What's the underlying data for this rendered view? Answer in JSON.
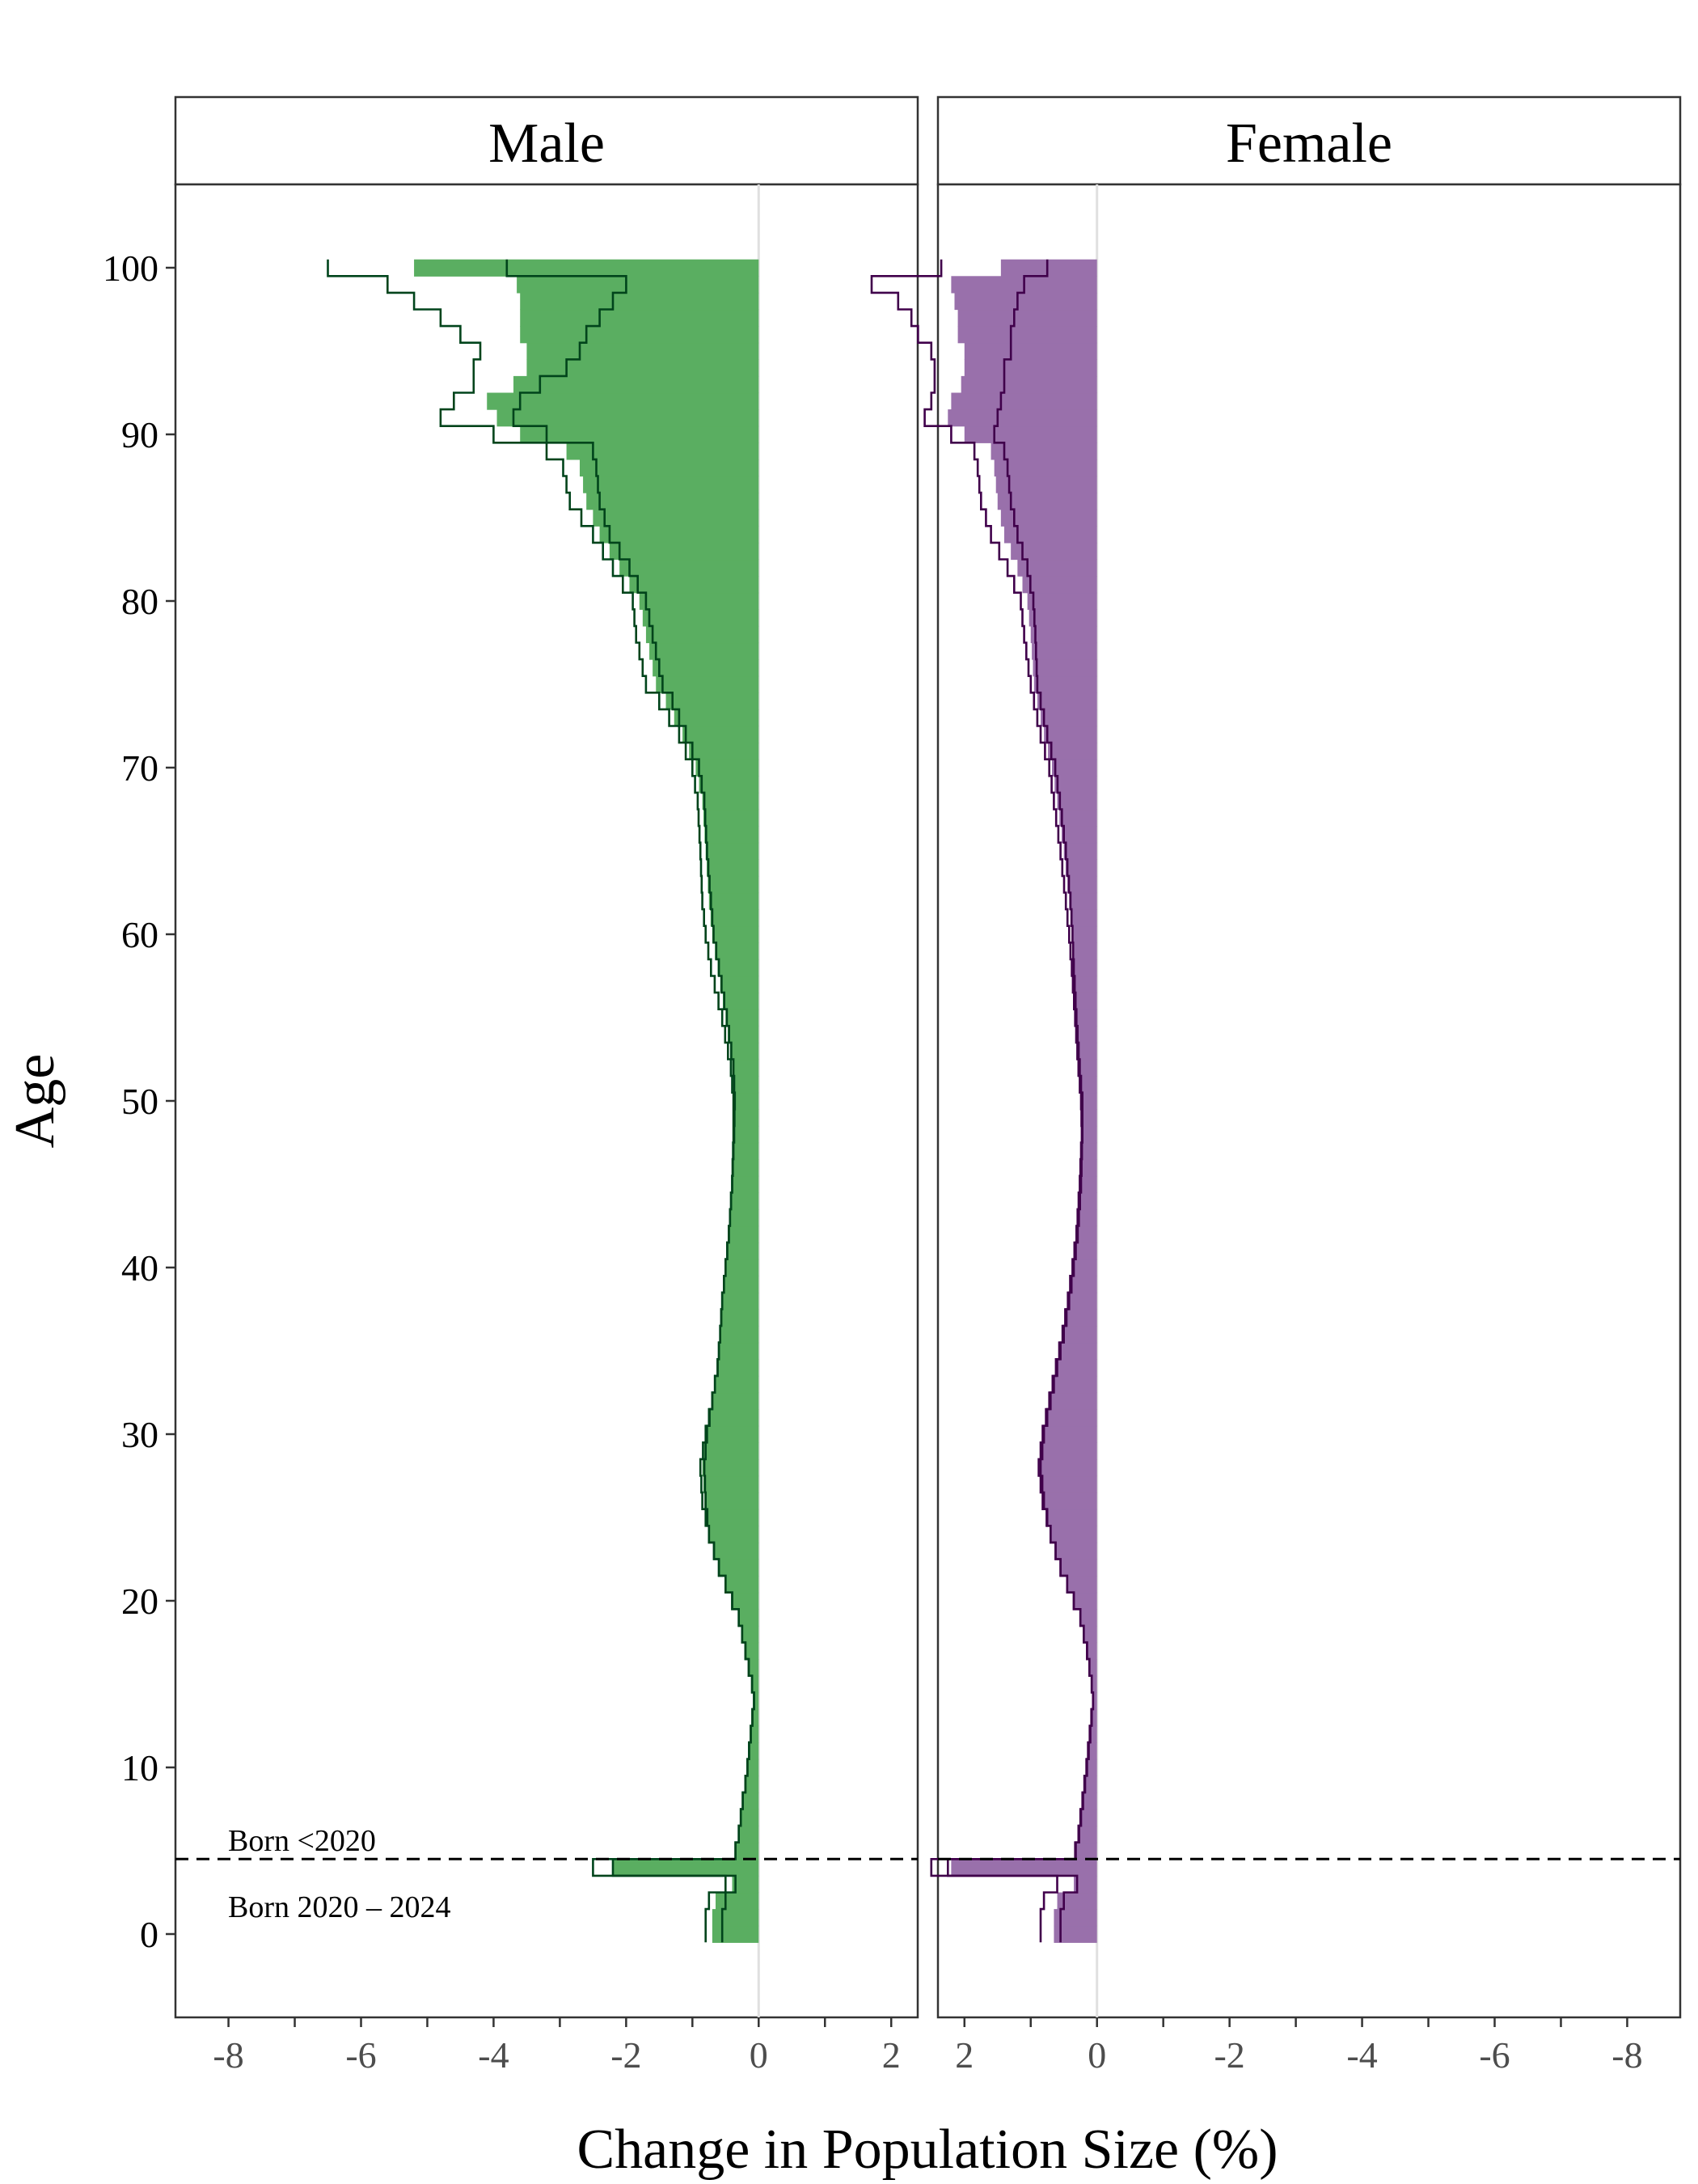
{
  "chart_data": {
    "type": "bar",
    "orientation": "horizontal",
    "xlabel": "Change in Population Size (%)",
    "ylabel": "Age",
    "facets": [
      "Male",
      "Female"
    ],
    "y_ticks": [
      0,
      10,
      20,
      30,
      40,
      50,
      60,
      70,
      80,
      90,
      100
    ],
    "x_ticks": {
      "Male": [
        -8,
        -6,
        -4,
        -2,
        0,
        2
      ],
      "Female": [
        2,
        0,
        -2,
        -4,
        -6,
        -8
      ]
    },
    "x_tick_labels": {
      "Male": [
        "-8",
        "-6",
        "-4",
        "-2",
        "0",
        "2"
      ],
      "Female": [
        "2",
        "0",
        "-2",
        "-4",
        "-6",
        "-8"
      ]
    },
    "xlim": {
      "Male": [
        -8.8,
        2.4
      ],
      "Female": [
        2.4,
        -8.8
      ]
    },
    "ylim": [
      -5,
      105
    ],
    "annotations": {
      "upper_label": "Born <2020",
      "lower_label": "Born 2020 – 2024",
      "divider_age": 4.5
    },
    "colors": {
      "male_fill": "#5aae61",
      "male_line": "#00441b",
      "female_fill": "#9970ab",
      "female_line": "#40004b",
      "zero_line": "#e0e0e0"
    },
    "age_profile_points": {
      "ages": [
        0,
        1,
        2,
        3,
        4,
        5,
        6,
        7,
        8,
        9,
        10,
        12,
        14,
        15,
        17,
        19,
        20,
        22,
        24,
        26,
        28,
        30,
        32,
        34,
        36,
        38,
        40,
        42,
        45,
        48,
        50,
        52,
        55,
        58,
        60,
        62,
        65,
        68,
        70,
        72,
        74,
        75,
        78,
        80,
        82,
        84,
        86,
        88,
        89,
        90,
        91,
        92,
        93,
        94,
        95,
        96,
        97,
        98,
        99,
        100
      ],
      "male_fill": [
        -0.7,
        -0.7,
        -0.65,
        -0.4,
        -2.2,
        -0.35,
        -0.3,
        -0.27,
        -0.24,
        -0.2,
        -0.17,
        -0.12,
        -0.07,
        -0.1,
        -0.2,
        -0.3,
        -0.4,
        -0.6,
        -0.75,
        -0.82,
        -0.85,
        -0.8,
        -0.7,
        -0.62,
        -0.58,
        -0.55,
        -0.5,
        -0.45,
        -0.4,
        -0.38,
        -0.37,
        -0.4,
        -0.5,
        -0.62,
        -0.7,
        -0.75,
        -0.8,
        -0.85,
        -0.95,
        -1.15,
        -1.4,
        -1.55,
        -1.7,
        -1.8,
        -2.1,
        -2.4,
        -2.6,
        -2.7,
        -2.9,
        -3.6,
        -3.95,
        -4.1,
        -3.7,
        -3.5,
        -3.5,
        -3.6,
        -3.6,
        -3.6,
        -3.65,
        -5.2
      ],
      "male_line_a": [
        -0.8,
        -0.8,
        -0.75,
        -0.5,
        -2.5,
        -0.35,
        -0.3,
        -0.27,
        -0.24,
        -0.2,
        -0.17,
        -0.12,
        -0.07,
        -0.1,
        -0.2,
        -0.3,
        -0.4,
        -0.6,
        -0.75,
        -0.85,
        -0.88,
        -0.8,
        -0.7,
        -0.62,
        -0.58,
        -0.55,
        -0.5,
        -0.45,
        -0.4,
        -0.38,
        -0.38,
        -0.42,
        -0.55,
        -0.72,
        -0.8,
        -0.85,
        -0.88,
        -0.92,
        -1.0,
        -1.2,
        -1.5,
        -1.7,
        -1.85,
        -1.9,
        -2.2,
        -2.5,
        -2.85,
        -2.95,
        -3.2,
        -4.0,
        -4.8,
        -4.6,
        -4.3,
        -4.3,
        -4.2,
        -4.5,
        -4.8,
        -5.2,
        -5.6,
        -6.5
      ],
      "male_line_b": [
        -0.55,
        -0.55,
        -0.5,
        -0.35,
        -2.2,
        -0.35,
        -0.3,
        -0.27,
        -0.24,
        -0.2,
        -0.17,
        -0.12,
        -0.07,
        -0.1,
        -0.2,
        -0.3,
        -0.4,
        -0.6,
        -0.75,
        -0.8,
        -0.82,
        -0.78,
        -0.7,
        -0.62,
        -0.58,
        -0.55,
        -0.5,
        -0.45,
        -0.4,
        -0.37,
        -0.36,
        -0.38,
        -0.48,
        -0.6,
        -0.68,
        -0.72,
        -0.78,
        -0.82,
        -0.9,
        -1.1,
        -1.3,
        -1.45,
        -1.6,
        -1.7,
        -1.95,
        -2.25,
        -2.4,
        -2.45,
        -2.5,
        -3.2,
        -3.7,
        -3.6,
        -3.3,
        -2.9,
        -2.7,
        -2.6,
        -2.4,
        -2.2,
        -2.0,
        -3.8
      ],
      "female_fill": [
        0.65,
        0.65,
        0.6,
        0.35,
        2.2,
        0.32,
        0.27,
        0.24,
        0.21,
        0.18,
        0.15,
        0.1,
        0.06,
        0.08,
        0.15,
        0.25,
        0.35,
        0.55,
        0.7,
        0.8,
        0.85,
        0.8,
        0.7,
        0.6,
        0.5,
        0.42,
        0.36,
        0.3,
        0.25,
        0.22,
        0.23,
        0.27,
        0.32,
        0.36,
        0.38,
        0.42,
        0.5,
        0.6,
        0.68,
        0.8,
        0.9,
        0.95,
        1.0,
        1.05,
        1.2,
        1.4,
        1.5,
        1.55,
        1.6,
        2.0,
        2.25,
        2.2,
        2.05,
        2.0,
        2.0,
        2.1,
        2.1,
        2.15,
        2.2,
        1.45
      ],
      "female_line_a": [
        0.85,
        0.85,
        0.8,
        0.6,
        2.5,
        0.33,
        0.28,
        0.25,
        0.22,
        0.19,
        0.16,
        0.11,
        0.06,
        0.08,
        0.15,
        0.25,
        0.35,
        0.55,
        0.7,
        0.82,
        0.88,
        0.82,
        0.72,
        0.62,
        0.52,
        0.44,
        0.37,
        0.31,
        0.26,
        0.23,
        0.24,
        0.28,
        0.33,
        0.38,
        0.42,
        0.47,
        0.55,
        0.65,
        0.72,
        0.85,
        0.95,
        1.0,
        1.1,
        1.15,
        1.35,
        1.6,
        1.75,
        1.8,
        1.85,
        2.2,
        2.6,
        2.5,
        2.45,
        2.45,
        2.5,
        2.7,
        2.8,
        3.0,
        3.4,
        2.35
      ],
      "female_line_b": [
        0.55,
        0.55,
        0.5,
        0.3,
        2.25,
        0.32,
        0.27,
        0.24,
        0.21,
        0.18,
        0.15,
        0.1,
        0.06,
        0.08,
        0.15,
        0.25,
        0.35,
        0.55,
        0.7,
        0.8,
        0.85,
        0.8,
        0.7,
        0.6,
        0.5,
        0.42,
        0.35,
        0.29,
        0.24,
        0.22,
        0.22,
        0.26,
        0.31,
        0.35,
        0.37,
        0.4,
        0.47,
        0.56,
        0.63,
        0.75,
        0.85,
        0.9,
        0.93,
        0.96,
        1.05,
        1.2,
        1.3,
        1.35,
        1.4,
        1.55,
        1.5,
        1.45,
        1.4,
        1.4,
        1.3,
        1.3,
        1.25,
        1.2,
        1.1,
        0.75
      ]
    }
  }
}
